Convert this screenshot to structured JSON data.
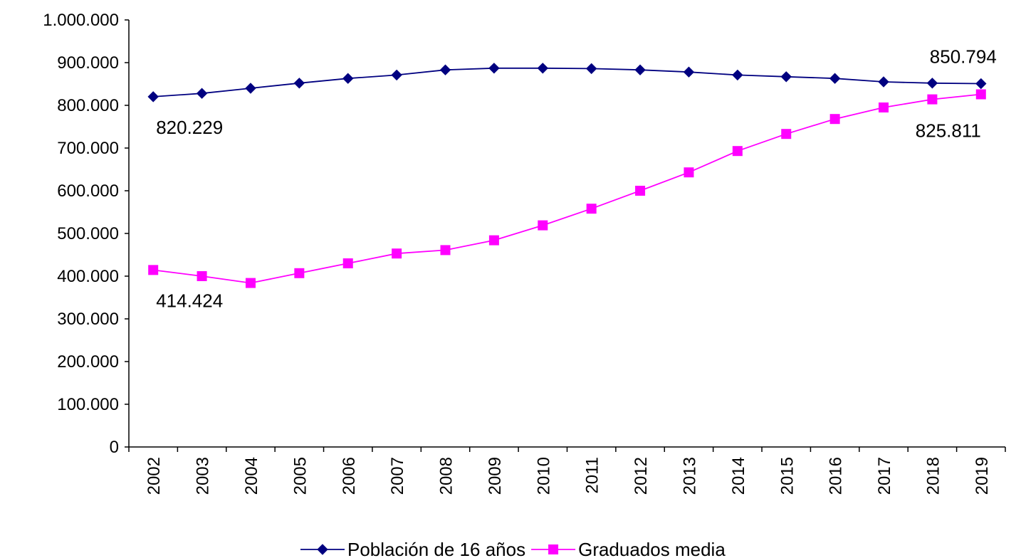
{
  "chart_data": {
    "type": "line",
    "title": "",
    "xlabel": "",
    "ylabel": "",
    "categories": [
      "2002",
      "2003",
      "2004",
      "2005",
      "2006",
      "2007",
      "2008",
      "2009",
      "2010",
      "2011",
      "2012",
      "2013",
      "2014",
      "2015",
      "2016",
      "2017",
      "2018",
      "2019"
    ],
    "y_ticks": [
      "0",
      "100.000",
      "200.000",
      "300.000",
      "400.000",
      "500.000",
      "600.000",
      "700.000",
      "800.000",
      "900.000",
      "1.000.000"
    ],
    "ylim": [
      0,
      1000000
    ],
    "grid": false,
    "legend": "bottom",
    "series": [
      {
        "name": "Población de 16 años",
        "color": "#000080",
        "marker": "diamond",
        "values": [
          820229,
          828000,
          840000,
          852000,
          863000,
          871000,
          883000,
          887000,
          887000,
          886000,
          883000,
          878000,
          871000,
          867000,
          863000,
          855000,
          852000,
          850794
        ]
      },
      {
        "name": "Graduados media",
        "color": "#FF00FF",
        "marker": "square",
        "values": [
          414424,
          400000,
          384000,
          407000,
          430000,
          453000,
          461000,
          484000,
          519000,
          558000,
          600000,
          643000,
          693000,
          733000,
          768000,
          795000,
          814000,
          825811
        ]
      }
    ],
    "annotations": [
      {
        "series": 0,
        "index": 0,
        "text": "820.229"
      },
      {
        "series": 0,
        "index": 17,
        "text": "850.794"
      },
      {
        "series": 1,
        "index": 0,
        "text": "414.424"
      },
      {
        "series": 1,
        "index": 17,
        "text": "825.811"
      }
    ]
  }
}
